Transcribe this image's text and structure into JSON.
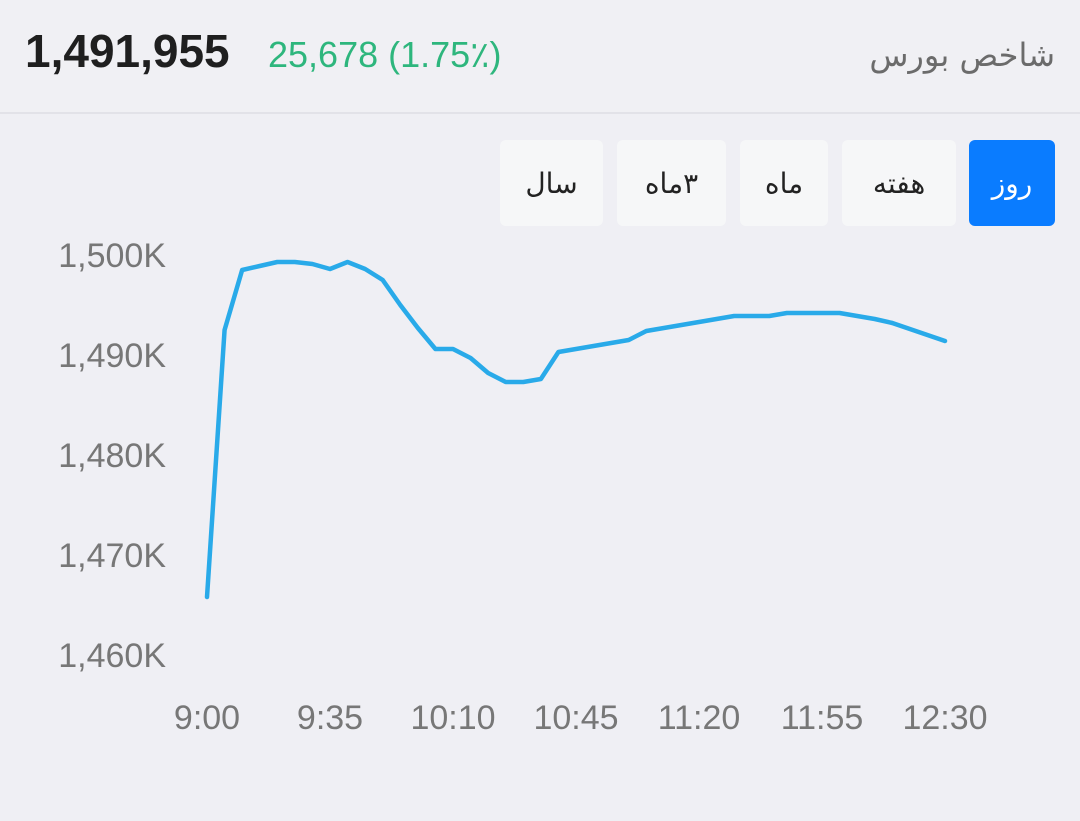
{
  "header": {
    "title": "شاخص بورس",
    "value": "1,491,955",
    "change": "25,678 (1.75٪)"
  },
  "tabs": [
    {
      "label": "روز",
      "active": true
    },
    {
      "label": "هفته",
      "active": false
    },
    {
      "label": "ماه",
      "active": false
    },
    {
      "label": "۳ماه",
      "active": false
    },
    {
      "label": "سال",
      "active": false
    }
  ],
  "chart_data": {
    "type": "line",
    "x": [
      540,
      545,
      550,
      555,
      560,
      565,
      570,
      575,
      580,
      585,
      590,
      595,
      600,
      605,
      610,
      615,
      620,
      625,
      630,
      635,
      640,
      645,
      650,
      655,
      660,
      665,
      670,
      675,
      680,
      685,
      690,
      695,
      700,
      705,
      710,
      715,
      720,
      725,
      730,
      735,
      740,
      745,
      750
    ],
    "series": [
      {
        "color": "#29aae9",
        "values": [
          1466100,
          1492800,
          1498800,
          1499200,
          1499600,
          1499600,
          1499400,
          1498900,
          1499600,
          1498900,
          1497800,
          1495300,
          1493000,
          1490900,
          1490900,
          1490000,
          1488500,
          1487600,
          1487600,
          1487900,
          1490600,
          1490900,
          1491200,
          1491500,
          1491800,
          1492700,
          1493000,
          1493300,
          1493600,
          1493900,
          1494200,
          1494200,
          1494200,
          1494500,
          1494500,
          1494500,
          1494500,
          1494200,
          1493900,
          1493500,
          1492900,
          1492300,
          1491700
        ]
      }
    ],
    "xlim": [
      540,
      750
    ],
    "xticks": [
      {
        "value": 540,
        "label": "9:00"
      },
      {
        "value": 575,
        "label": "9:35"
      },
      {
        "value": 610,
        "label": "10:10"
      },
      {
        "value": 645,
        "label": "10:45"
      },
      {
        "value": 680,
        "label": "11:20"
      },
      {
        "value": 715,
        "label": "11:55"
      },
      {
        "value": 750,
        "label": "12:30"
      }
    ],
    "ylim": [
      1460000,
      1500000
    ],
    "yticks": [
      {
        "value": 1460000,
        "label": "1,460K"
      },
      {
        "value": 1470000,
        "label": "1,470K"
      },
      {
        "value": 1480000,
        "label": "1,480K"
      },
      {
        "value": 1490000,
        "label": "1,490K"
      },
      {
        "value": 1500000,
        "label": "1,500K"
      }
    ],
    "grid": false
  }
}
